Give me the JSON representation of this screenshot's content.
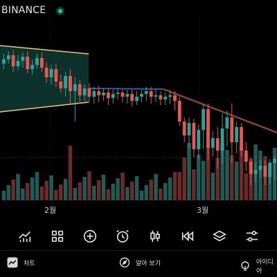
{
  "header": {
    "exchange": "BINANCE",
    "live_indicator": "green-dot"
  },
  "chart": {
    "x_labels": [
      "2월",
      "3월"
    ],
    "up_color": "#26a69a",
    "down_color": "#ef5350",
    "vol_up_color": "#1f5c55",
    "vol_down_color": "#6b2b2b",
    "wedge_color": "#f0d060",
    "h_line_color": "#3c5aa0",
    "trend_color": "#8b4a1e"
  },
  "toolbar": {
    "icons": [
      "indicators-icon",
      "layout-grid-icon",
      "add-icon",
      "alarm-icon",
      "candle-type-icon",
      "replay-icon",
      "layers-icon",
      "settings-sliders-icon"
    ]
  },
  "bottom_nav": {
    "chart_label": "차트",
    "ideas_label": "알아 보기",
    "ideas2_label": "아이디어"
  }
}
